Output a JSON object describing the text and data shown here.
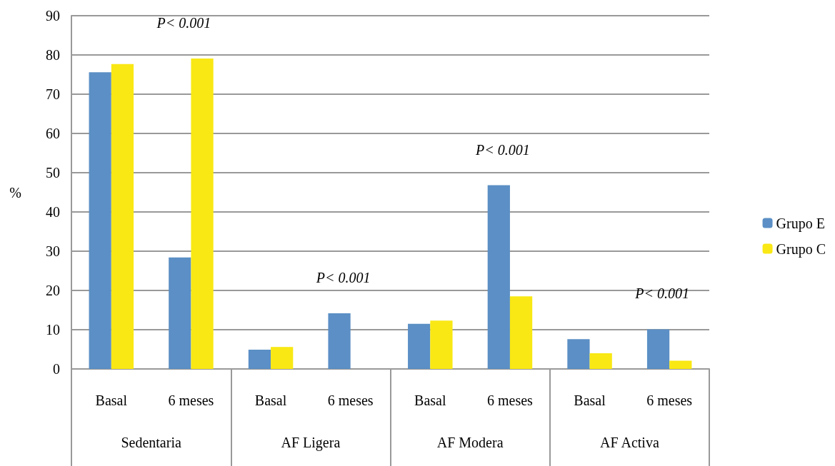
{
  "chart_data": {
    "type": "bar",
    "ylabel": "%",
    "categories": [
      "Basal",
      "6 meses",
      "Basal",
      "6 meses",
      "Basal",
      "6 meses",
      "Basal",
      "6 meses"
    ],
    "series": [
      {
        "name": "Grupo E",
        "color": "#5b8fc5",
        "values": [
          75.6,
          28.4,
          4.9,
          14.2,
          11.5,
          46.8,
          7.6,
          10.1
        ]
      },
      {
        "name": "Grupo C",
        "color": "#f9e814",
        "values": [
          77.7,
          79.1,
          5.6,
          0,
          12.3,
          18.5,
          4.0,
          2.1
        ]
      }
    ],
    "annotations": [
      "Sedentaria",
      "AF Ligera",
      "AF Modera",
      "AF Activa",
      "P< 0.001",
      "P< 0.001",
      "P< 0.001",
      "P< 0.001"
    ],
    "ylim": [
      0,
      90
    ],
    "yticks": [
      0,
      10,
      20,
      30,
      40,
      50,
      60,
      70,
      80,
      90
    ],
    "grid": "y",
    "legend": "right"
  }
}
